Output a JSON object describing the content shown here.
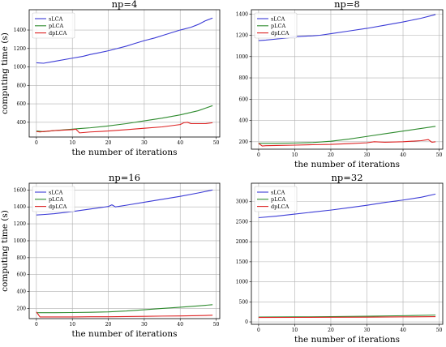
{
  "figure": {
    "colors": {
      "sLCA": "#3b3bd6",
      "pLCA": "#2e8b2e",
      "dpLCA": "#dd2222",
      "grid": "#b0b0b0",
      "axes": "#000000"
    },
    "legend_placement": "top-left",
    "grid": true
  },
  "chart_data": [
    {
      "type": "line",
      "title": "np=4",
      "xlabel": "the number of iterations",
      "ylabel": "computing time (s)",
      "xlim": [
        -2,
        51
      ],
      "ylim": [
        240,
        1620
      ],
      "xticks": [
        0,
        10,
        20,
        30,
        40,
        50
      ],
      "yticks": [
        400,
        600,
        800,
        1000,
        1200,
        1400
      ],
      "xtick_labels": [
        "0",
        "10",
        "20",
        "30",
        "40",
        "50"
      ],
      "ytick_labels": [
        "400",
        "600",
        "800",
        "1000",
        "1200",
        "1400"
      ],
      "series": [
        {
          "name": "sLCA",
          "x": [
            0,
            2,
            5,
            10,
            13,
            15,
            17,
            20,
            25,
            27,
            30,
            33,
            35,
            40,
            43,
            45,
            47,
            49
          ],
          "y": [
            1045,
            1040,
            1060,
            1095,
            1115,
            1135,
            1150,
            1175,
            1225,
            1250,
            1285,
            1315,
            1340,
            1400,
            1430,
            1460,
            1500,
            1530
          ]
        },
        {
          "name": "pLCA",
          "x": [
            0,
            2,
            5,
            10,
            12,
            15,
            20,
            25,
            30,
            35,
            40,
            45,
            49
          ],
          "y": [
            305,
            298,
            310,
            325,
            332,
            340,
            360,
            385,
            415,
            445,
            480,
            525,
            580
          ]
        },
        {
          "name": "dpLCA",
          "x": [
            0,
            1,
            2,
            5,
            10,
            11,
            12,
            15,
            20,
            25,
            30,
            35,
            40,
            41,
            42,
            43,
            45,
            47,
            49
          ],
          "y": [
            300,
            295,
            300,
            310,
            320,
            325,
            285,
            295,
            305,
            320,
            335,
            350,
            375,
            395,
            400,
            385,
            385,
            385,
            395
          ]
        }
      ]
    },
    {
      "type": "line",
      "title": "np=8",
      "xlabel": "the number of iterations",
      "ylabel": "",
      "xlim": [
        -2,
        51
      ],
      "ylim": [
        130,
        1440
      ],
      "xticks": [
        0,
        10,
        20,
        30,
        40,
        50
      ],
      "yticks": [
        200,
        400,
        600,
        800,
        1000,
        1200,
        1400
      ],
      "xtick_labels": [
        "0",
        "10",
        "20",
        "30",
        "40",
        "50"
      ],
      "ytick_labels": [
        "200",
        "400",
        "600",
        "800",
        "1000",
        "1200",
        "1400"
      ],
      "series": [
        {
          "name": "sLCA",
          "x": [
            0,
            2,
            5,
            8,
            10,
            12,
            15,
            17,
            20,
            25,
            30,
            35,
            40,
            45,
            49
          ],
          "y": [
            1150,
            1155,
            1165,
            1175,
            1185,
            1190,
            1195,
            1200,
            1215,
            1240,
            1265,
            1295,
            1325,
            1360,
            1395
          ]
        },
        {
          "name": "pLCA",
          "x": [
            0,
            5,
            10,
            15,
            20,
            25,
            30,
            35,
            40,
            45,
            49
          ],
          "y": [
            185,
            185,
            188,
            192,
            205,
            225,
            250,
            275,
            300,
            325,
            345
          ]
        },
        {
          "name": "dpLCA",
          "x": [
            0,
            1,
            2,
            5,
            10,
            15,
            20,
            25,
            30,
            32,
            35,
            40,
            45,
            47,
            48,
            49
          ],
          "y": [
            185,
            160,
            163,
            165,
            168,
            172,
            175,
            182,
            190,
            200,
            195,
            200,
            210,
            220,
            195,
            200
          ]
        }
      ]
    },
    {
      "type": "line",
      "title": "np=16",
      "xlabel": "the number of iterations",
      "ylabel": "computing time (s)",
      "xlim": [
        -2,
        51
      ],
      "ylim": [
        80,
        1680
      ],
      "xticks": [
        0,
        10,
        20,
        30,
        40,
        50
      ],
      "yticks": [
        200,
        400,
        600,
        800,
        1000,
        1200,
        1400,
        1600
      ],
      "xtick_labels": [
        "0",
        "10",
        "20",
        "30",
        "40",
        "50"
      ],
      "ytick_labels": [
        "200",
        "400",
        "600",
        "800",
        "1000",
        "1200",
        "1400",
        "1600"
      ],
      "series": [
        {
          "name": "sLCA",
          "x": [
            0,
            2,
            5,
            10,
            15,
            20,
            21,
            22,
            25,
            30,
            35,
            40,
            45,
            49
          ],
          "y": [
            1305,
            1310,
            1320,
            1345,
            1375,
            1405,
            1425,
            1400,
            1420,
            1455,
            1490,
            1525,
            1565,
            1600
          ]
        },
        {
          "name": "pLCA",
          "x": [
            0,
            5,
            10,
            15,
            20,
            25,
            30,
            35,
            40,
            45,
            49
          ],
          "y": [
            150,
            150,
            152,
            155,
            160,
            170,
            185,
            200,
            215,
            230,
            245
          ]
        },
        {
          "name": "dpLCA",
          "x": [
            0,
            1,
            5,
            10,
            15,
            20,
            25,
            30,
            35,
            40,
            45,
            49
          ],
          "y": [
            160,
            100,
            100,
            100,
            102,
            102,
            105,
            107,
            110,
            112,
            115,
            120
          ]
        }
      ]
    },
    {
      "type": "line",
      "title": "np=32",
      "xlabel": "the number of iterations",
      "ylabel": "",
      "xlim": [
        -2,
        51
      ],
      "ylim": [
        -60,
        3460
      ],
      "xticks": [
        0,
        10,
        20,
        30,
        40,
        50
      ],
      "yticks": [
        0,
        500,
        1000,
        1500,
        2000,
        2500,
        3000
      ],
      "xtick_labels": [
        "0",
        "10",
        "20",
        "30",
        "40",
        "50"
      ],
      "ytick_labels": [
        "0",
        "500",
        "1000",
        "1500",
        "2000",
        "2500",
        "3000"
      ],
      "series": [
        {
          "name": "sLCA",
          "x": [
            0,
            5,
            10,
            15,
            20,
            25,
            30,
            35,
            40,
            45,
            49
          ],
          "y": [
            2600,
            2640,
            2690,
            2740,
            2790,
            2850,
            2910,
            2980,
            3040,
            3110,
            3190
          ]
        },
        {
          "name": "pLCA",
          "x": [
            0,
            10,
            20,
            30,
            40,
            49
          ],
          "y": [
            120,
            125,
            130,
            140,
            155,
            170
          ]
        },
        {
          "name": "dpLCA",
          "x": [
            0,
            10,
            20,
            30,
            40,
            49
          ],
          "y": [
            110,
            112,
            115,
            118,
            125,
            130
          ]
        }
      ]
    }
  ]
}
